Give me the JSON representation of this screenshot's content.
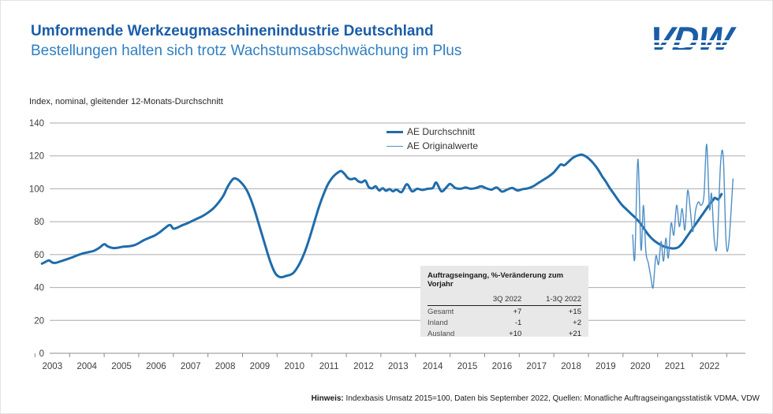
{
  "header": {
    "title": "Umformende Werkzeugmaschinenindustrie Deutschland",
    "subtitle": "Bestellungen halten sich trotz Wachstumsabschwächung im Plus"
  },
  "logo": {
    "text": "VDW"
  },
  "colors": {
    "title_blue": "#1a5da8",
    "subtitle_blue": "#2f7fc1",
    "thick_line": "#1f6cab",
    "thin_line": "#4f8fc6",
    "gridline": "#ababab",
    "axis_line": "#8c8c8c",
    "table_bg": "#e8e8e8"
  },
  "chart_data": {
    "type": "line",
    "axis_title": "Index, nominal, gleitender 12-Monats-Durchschnitt",
    "ylim": [
      0,
      140
    ],
    "yticks": [
      0,
      20,
      40,
      60,
      80,
      100,
      120,
      140
    ],
    "x_year_labels": [
      2003,
      2004,
      2005,
      2006,
      2007,
      2008,
      2009,
      2010,
      2011,
      2012,
      2013,
      2014,
      2015,
      2016,
      2017,
      2018,
      2019,
      2020,
      2021,
      2022
    ],
    "grid": true,
    "legend_position": "top-center",
    "series": [
      {
        "name": "AE Durchschnitt",
        "color": "#1f6cab",
        "stroke_width": 3,
        "points": [
          [
            2002.7,
            54.5
          ],
          [
            2002.8,
            55.5
          ],
          [
            2002.9,
            56.5
          ],
          [
            2003.0,
            55.2
          ],
          [
            2003.1,
            55.0
          ],
          [
            2003.25,
            56.0
          ],
          [
            2003.4,
            57.0
          ],
          [
            2003.6,
            58.5
          ],
          [
            2003.75,
            59.8
          ],
          [
            2003.9,
            60.8
          ],
          [
            2004.05,
            61.5
          ],
          [
            2004.2,
            62.3
          ],
          [
            2004.35,
            64.0
          ],
          [
            2004.5,
            66.3
          ],
          [
            2004.6,
            65.0
          ],
          [
            2004.75,
            64.0
          ],
          [
            2004.9,
            64.2
          ],
          [
            2005.05,
            64.8
          ],
          [
            2005.2,
            65.0
          ],
          [
            2005.35,
            65.6
          ],
          [
            2005.5,
            67.0
          ],
          [
            2005.65,
            68.8
          ],
          [
            2005.8,
            70.2
          ],
          [
            2005.95,
            71.5
          ],
          [
            2006.1,
            73.5
          ],
          [
            2006.25,
            76.0
          ],
          [
            2006.4,
            78.0
          ],
          [
            2006.5,
            75.8
          ],
          [
            2006.6,
            76.3
          ],
          [
            2006.75,
            77.8
          ],
          [
            2006.9,
            79.0
          ],
          [
            2007.05,
            80.5
          ],
          [
            2007.2,
            82.0
          ],
          [
            2007.35,
            83.5
          ],
          [
            2007.5,
            85.5
          ],
          [
            2007.65,
            88.0
          ],
          [
            2007.8,
            91.5
          ],
          [
            2007.95,
            96.0
          ],
          [
            2008.05,
            100.5
          ],
          [
            2008.15,
            104.0
          ],
          [
            2008.25,
            106.3
          ],
          [
            2008.35,
            105.8
          ],
          [
            2008.45,
            104.0
          ],
          [
            2008.55,
            101.5
          ],
          [
            2008.65,
            98.0
          ],
          [
            2008.75,
            93.0
          ],
          [
            2008.85,
            87.0
          ],
          [
            2008.95,
            80.0
          ],
          [
            2009.05,
            73.0
          ],
          [
            2009.15,
            66.0
          ],
          [
            2009.25,
            59.0
          ],
          [
            2009.35,
            53.0
          ],
          [
            2009.45,
            48.5
          ],
          [
            2009.55,
            46.6
          ],
          [
            2009.65,
            46.3
          ],
          [
            2009.75,
            47.0
          ],
          [
            2009.85,
            47.5
          ],
          [
            2009.95,
            48.5
          ],
          [
            2010.05,
            51.0
          ],
          [
            2010.15,
            54.5
          ],
          [
            2010.25,
            59.0
          ],
          [
            2010.35,
            64.5
          ],
          [
            2010.45,
            71.0
          ],
          [
            2010.55,
            78.0
          ],
          [
            2010.65,
            85.0
          ],
          [
            2010.75,
            91.5
          ],
          [
            2010.85,
            97.0
          ],
          [
            2010.95,
            102.0
          ],
          [
            2011.05,
            105.5
          ],
          [
            2011.15,
            108.0
          ],
          [
            2011.25,
            109.8
          ],
          [
            2011.35,
            110.8
          ],
          [
            2011.45,
            109.0
          ],
          [
            2011.55,
            106.5
          ],
          [
            2011.65,
            105.8
          ],
          [
            2011.75,
            106.3
          ],
          [
            2011.85,
            104.5
          ],
          [
            2011.95,
            104.0
          ],
          [
            2012.05,
            105.0
          ],
          [
            2012.15,
            101.0
          ],
          [
            2012.25,
            100.3
          ],
          [
            2012.35,
            101.5
          ],
          [
            2012.45,
            99.0
          ],
          [
            2012.55,
            100.3
          ],
          [
            2012.65,
            98.8
          ],
          [
            2012.75,
            99.8
          ],
          [
            2012.85,
            98.5
          ],
          [
            2012.95,
            99.5
          ],
          [
            2013.1,
            98.0
          ],
          [
            2013.25,
            102.8
          ],
          [
            2013.4,
            98.5
          ],
          [
            2013.55,
            100.0
          ],
          [
            2013.7,
            99.3
          ],
          [
            2013.85,
            100.0
          ],
          [
            2014.0,
            100.5
          ],
          [
            2014.1,
            103.8
          ],
          [
            2014.25,
            98.5
          ],
          [
            2014.4,
            101.0
          ],
          [
            2014.5,
            103.0
          ],
          [
            2014.65,
            100.5
          ],
          [
            2014.8,
            100.0
          ],
          [
            2014.95,
            100.8
          ],
          [
            2015.1,
            100.0
          ],
          [
            2015.25,
            100.5
          ],
          [
            2015.4,
            101.5
          ],
          [
            2015.55,
            100.3
          ],
          [
            2015.7,
            99.5
          ],
          [
            2015.85,
            100.8
          ],
          [
            2016.0,
            98.3
          ],
          [
            2016.15,
            99.5
          ],
          [
            2016.3,
            100.5
          ],
          [
            2016.45,
            99.0
          ],
          [
            2016.6,
            99.8
          ],
          [
            2016.75,
            100.3
          ],
          [
            2016.9,
            101.5
          ],
          [
            2017.05,
            103.5
          ],
          [
            2017.2,
            105.5
          ],
          [
            2017.35,
            107.5
          ],
          [
            2017.5,
            110.0
          ],
          [
            2017.6,
            112.5
          ],
          [
            2017.7,
            114.8
          ],
          [
            2017.8,
            114.3
          ],
          [
            2017.9,
            116.0
          ],
          [
            2018.0,
            118.0
          ],
          [
            2018.1,
            119.5
          ],
          [
            2018.2,
            120.3
          ],
          [
            2018.3,
            120.8
          ],
          [
            2018.4,
            120.0
          ],
          [
            2018.5,
            118.5
          ],
          [
            2018.6,
            116.5
          ],
          [
            2018.7,
            114.0
          ],
          [
            2018.8,
            111.0
          ],
          [
            2018.9,
            107.5
          ],
          [
            2019.0,
            104.5
          ],
          [
            2019.1,
            101.0
          ],
          [
            2019.2,
            98.0
          ],
          [
            2019.3,
            95.0
          ],
          [
            2019.4,
            92.0
          ],
          [
            2019.5,
            89.5
          ],
          [
            2019.6,
            87.5
          ],
          [
            2019.7,
            85.5
          ],
          [
            2019.8,
            83.5
          ],
          [
            2019.9,
            81.5
          ],
          [
            2020.0,
            79.0
          ],
          [
            2020.1,
            76.0
          ],
          [
            2020.2,
            73.0
          ],
          [
            2020.3,
            70.5
          ],
          [
            2020.4,
            68.5
          ],
          [
            2020.5,
            67.0
          ],
          [
            2020.6,
            65.8
          ],
          [
            2020.7,
            64.8
          ],
          [
            2020.8,
            64.2
          ],
          [
            2020.9,
            63.8
          ],
          [
            2021.0,
            63.8
          ],
          [
            2021.1,
            64.5
          ],
          [
            2021.2,
            66.5
          ],
          [
            2021.3,
            69.5
          ],
          [
            2021.4,
            72.5
          ],
          [
            2021.5,
            75.5
          ],
          [
            2021.6,
            78.5
          ],
          [
            2021.7,
            81.5
          ],
          [
            2021.8,
            84.5
          ],
          [
            2021.9,
            87.5
          ],
          [
            2022.0,
            90.5
          ],
          [
            2022.1,
            93.0
          ],
          [
            2022.15,
            94.5
          ],
          [
            2022.2,
            94.0
          ],
          [
            2022.25,
            93.5
          ],
          [
            2022.3,
            95.0
          ],
          [
            2022.35,
            96.8
          ]
        ]
      },
      {
        "name": "AE Originalwerte",
        "color": "#4f8fc6",
        "stroke_width": 1.4,
        "points": [
          [
            2019.78,
            72
          ],
          [
            2019.84,
            58
          ],
          [
            2019.93,
            118
          ],
          [
            2020.02,
            63
          ],
          [
            2020.09,
            90
          ],
          [
            2020.16,
            62
          ],
          [
            2020.23,
            55
          ],
          [
            2020.3,
            47
          ],
          [
            2020.37,
            40
          ],
          [
            2020.45,
            59
          ],
          [
            2020.53,
            54
          ],
          [
            2020.6,
            68
          ],
          [
            2020.67,
            56
          ],
          [
            2020.74,
            70
          ],
          [
            2020.81,
            58
          ],
          [
            2020.89,
            79
          ],
          [
            2020.97,
            72
          ],
          [
            2021.05,
            90
          ],
          [
            2021.13,
            77
          ],
          [
            2021.21,
            88
          ],
          [
            2021.29,
            75
          ],
          [
            2021.37,
            99
          ],
          [
            2021.45,
            86
          ],
          [
            2021.52,
            74
          ],
          [
            2021.6,
            87
          ],
          [
            2021.68,
            92
          ],
          [
            2021.76,
            90
          ],
          [
            2021.84,
            96
          ],
          [
            2021.92,
            127
          ],
          [
            2022.0,
            88
          ],
          [
            2022.06,
            97
          ],
          [
            2022.14,
            69
          ],
          [
            2022.22,
            66
          ],
          [
            2022.32,
            115
          ],
          [
            2022.4,
            119
          ],
          [
            2022.48,
            68
          ],
          [
            2022.56,
            67
          ],
          [
            2022.68,
            106
          ]
        ]
      }
    ]
  },
  "inset_table": {
    "title": "Auftragseingang, %-Veränderung zum Vorjahr",
    "columns": [
      "3Q 2022",
      "1-3Q 2022"
    ],
    "rows": [
      {
        "label": "Gesamt",
        "q3": "+7",
        "q13": "+15"
      },
      {
        "label": "Inland",
        "q3": "-1",
        "q13": "+2"
      },
      {
        "label": "Ausland",
        "q3": "+10",
        "q13": "+21"
      }
    ]
  },
  "footer": {
    "label": "Hinweis:",
    "text": " Indexbasis Umsatz 2015=100, Daten bis September 2022, Quellen: Monatliche Auftragseingangsstatistik VDMA, VDW"
  }
}
